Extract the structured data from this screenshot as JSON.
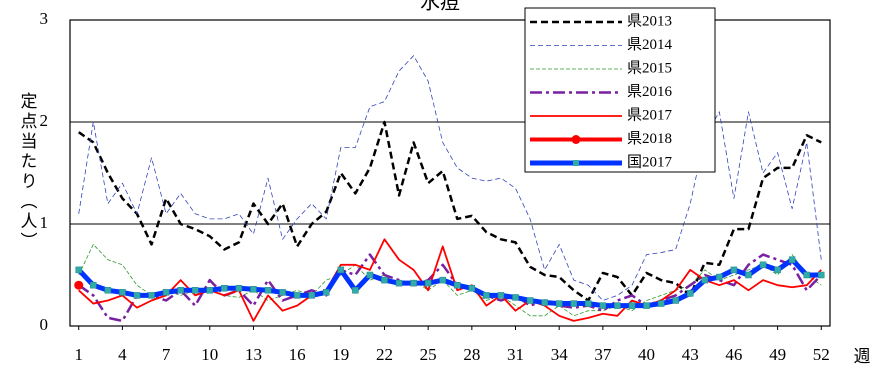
{
  "chart_data": {
    "type": "line",
    "title": "水痘",
    "y_label": "定点当たり（人）",
    "x_label": "週",
    "x": [
      1,
      2,
      3,
      4,
      5,
      6,
      7,
      8,
      9,
      10,
      11,
      12,
      13,
      14,
      15,
      16,
      17,
      18,
      19,
      20,
      21,
      22,
      23,
      24,
      25,
      26,
      27,
      28,
      29,
      30,
      31,
      32,
      33,
      34,
      35,
      36,
      37,
      38,
      39,
      40,
      41,
      42,
      43,
      44,
      45,
      46,
      47,
      48,
      49,
      50,
      51,
      52
    ],
    "xlim": [
      0.4,
      52.6
    ],
    "xticks": [
      1,
      4,
      7,
      10,
      13,
      16,
      19,
      22,
      25,
      28,
      31,
      34,
      37,
      40,
      43,
      46,
      49,
      52
    ],
    "ylim": [
      0,
      3
    ],
    "yticks": [
      0,
      1,
      2,
      3
    ],
    "grid": true,
    "series": [
      {
        "name": "県2013",
        "color": "#000000",
        "width": 2.5,
        "dash": "7,4",
        "values": [
          1.9,
          1.8,
          1.5,
          1.25,
          1.1,
          0.8,
          1.25,
          1.0,
          0.95,
          0.88,
          0.75,
          0.82,
          1.2,
          1.0,
          1.2,
          0.78,
          1.0,
          1.12,
          1.5,
          1.3,
          1.55,
          2.0,
          1.28,
          1.8,
          1.4,
          1.52,
          1.05,
          1.08,
          0.92,
          0.85,
          0.82,
          0.58,
          0.5,
          0.48,
          0.35,
          0.25,
          0.52,
          0.48,
          0.3,
          0.52,
          0.45,
          0.42,
          0.3,
          0.62,
          0.6,
          0.95,
          0.95,
          1.45,
          1.55,
          1.55,
          1.87,
          1.8
        ]
      },
      {
        "name": "県2014",
        "color": "#3344bb",
        "width": 0.8,
        "dash": "5,3",
        "values": [
          1.1,
          2.0,
          1.2,
          1.4,
          1.1,
          1.65,
          1.1,
          1.3,
          1.1,
          1.05,
          1.05,
          1.1,
          0.9,
          1.45,
          0.85,
          1.05,
          1.2,
          1.05,
          1.75,
          1.75,
          2.15,
          2.2,
          2.5,
          2.65,
          2.4,
          1.8,
          1.55,
          1.45,
          1.42,
          1.45,
          1.35,
          1.05,
          0.55,
          0.8,
          0.45,
          0.4,
          0.25,
          0.3,
          0.4,
          0.7,
          0.72,
          0.75,
          1.2,
          1.85,
          2.1,
          1.25,
          2.1,
          1.5,
          1.7,
          1.15,
          1.8,
          0.65
        ]
      },
      {
        "name": "県2015",
        "color": "#2e9a2e",
        "width": 0.8,
        "dash": "4,2",
        "values": [
          0.5,
          0.8,
          0.65,
          0.6,
          0.4,
          0.3,
          0.35,
          0.3,
          0.35,
          0.35,
          0.3,
          0.28,
          0.35,
          0.25,
          0.3,
          0.35,
          0.3,
          0.45,
          0.5,
          0.6,
          0.45,
          0.5,
          0.4,
          0.45,
          0.35,
          0.45,
          0.3,
          0.35,
          0.25,
          0.3,
          0.2,
          0.1,
          0.1,
          0.2,
          0.1,
          0.15,
          0.15,
          0.2,
          0.15,
          0.25,
          0.3,
          0.35,
          0.4,
          0.55,
          0.45,
          0.5,
          0.55,
          0.6,
          0.5,
          0.7,
          0.5,
          0.4
        ]
      },
      {
        "name": "県2016",
        "color": "#7a1fa2",
        "width": 2.5,
        "dash": "12,4,3,4",
        "values": [
          0.4,
          0.3,
          0.08,
          0.05,
          0.3,
          0.3,
          0.25,
          0.35,
          0.2,
          0.45,
          0.3,
          0.35,
          0.2,
          0.45,
          0.25,
          0.3,
          0.35,
          0.3,
          0.55,
          0.5,
          0.7,
          0.5,
          0.45,
          0.4,
          0.45,
          0.6,
          0.4,
          0.35,
          0.3,
          0.25,
          0.3,
          0.2,
          0.25,
          0.2,
          0.18,
          0.2,
          0.15,
          0.25,
          0.3,
          0.2,
          0.25,
          0.3,
          0.4,
          0.5,
          0.45,
          0.4,
          0.6,
          0.7,
          0.65,
          0.6,
          0.35,
          0.5
        ]
      },
      {
        "name": "県2017",
        "color": "#ff0000",
        "width": 1.8,
        "dash": "none",
        "values": [
          0.35,
          0.22,
          0.25,
          0.3,
          0.18,
          0.25,
          0.3,
          0.45,
          0.3,
          0.35,
          0.3,
          0.35,
          0.05,
          0.3,
          0.15,
          0.2,
          0.3,
          0.35,
          0.6,
          0.6,
          0.55,
          0.85,
          0.65,
          0.55,
          0.35,
          0.78,
          0.35,
          0.4,
          0.2,
          0.3,
          0.15,
          0.25,
          0.2,
          0.1,
          0.05,
          0.08,
          0.12,
          0.1,
          0.25,
          0.2,
          0.25,
          0.35,
          0.55,
          0.45,
          0.4,
          0.45,
          0.35,
          0.45,
          0.4,
          0.38,
          0.4,
          0.55
        ]
      },
      {
        "name": "県2018",
        "color": "#ff0000",
        "width": 4,
        "dash": "none",
        "marker": "circle",
        "values": [
          0.4,
          null,
          null,
          null,
          null,
          null,
          null,
          null,
          null,
          null,
          null,
          null,
          null,
          null,
          null,
          null,
          null,
          null,
          null,
          null,
          null,
          null,
          null,
          null,
          null,
          null,
          null,
          null,
          null,
          null,
          null,
          null,
          null,
          null,
          null,
          null,
          null,
          null,
          null,
          null,
          null,
          null,
          null,
          null,
          null,
          null,
          null,
          null,
          null,
          null,
          null,
          null
        ]
      },
      {
        "name": "国2017",
        "color": "#0033ff",
        "width": 5,
        "dash": "none",
        "marker": "square",
        "values": [
          0.55,
          0.4,
          0.35,
          0.33,
          0.3,
          0.3,
          0.33,
          0.35,
          0.35,
          0.35,
          0.37,
          0.37,
          0.36,
          0.35,
          0.33,
          0.3,
          0.3,
          0.33,
          0.55,
          0.35,
          0.5,
          0.45,
          0.42,
          0.42,
          0.42,
          0.45,
          0.4,
          0.37,
          0.3,
          0.3,
          0.28,
          0.25,
          0.23,
          0.22,
          0.22,
          0.22,
          0.2,
          0.2,
          0.2,
          0.2,
          0.22,
          0.25,
          0.32,
          0.45,
          0.48,
          0.55,
          0.5,
          0.6,
          0.55,
          0.65,
          0.5,
          0.5
        ]
      }
    ]
  }
}
